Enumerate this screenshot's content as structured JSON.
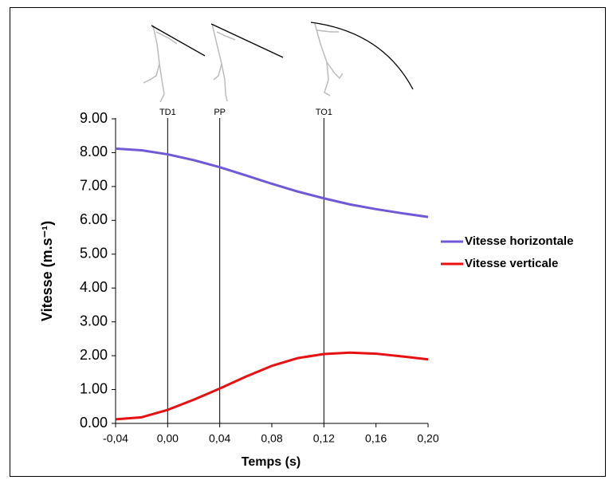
{
  "chart_data": {
    "type": "line",
    "x": [
      -0.04,
      -0.02,
      0.0,
      0.02,
      0.04,
      0.06,
      0.08,
      0.1,
      0.12,
      0.14,
      0.16,
      0.18,
      0.2
    ],
    "series": [
      {
        "name": "Vitesse horizontale",
        "color": "#7058d8",
        "values": [
          8.12,
          8.07,
          7.95,
          7.78,
          7.57,
          7.33,
          7.08,
          6.85,
          6.65,
          6.47,
          6.33,
          6.21,
          6.1
        ]
      },
      {
        "name": "Vitesse verticale",
        "color": "#e81010",
        "values": [
          0.12,
          0.18,
          0.4,
          0.7,
          1.03,
          1.38,
          1.7,
          1.93,
          2.05,
          2.09,
          2.06,
          1.98,
          1.89
        ]
      }
    ],
    "xlabel": "Temps (s)",
    "ylabel": "Vitesse (m.s⁻¹)",
    "xlim": [
      -0.04,
      0.2
    ],
    "xticks": [
      {
        "value": -0.04,
        "label": "-0,04"
      },
      {
        "value": 0,
        "label": "0,00"
      },
      {
        "value": 0.04,
        "label": "0,04"
      },
      {
        "value": 0.08,
        "label": "0,08"
      },
      {
        "value": 0.12,
        "label": "0,12"
      },
      {
        "value": 0.16,
        "label": "0,16"
      },
      {
        "value": 0.2,
        "label": "0,20"
      }
    ],
    "ylim": [
      0,
      9
    ],
    "yticks": [
      {
        "value": 0,
        "label": "0.00"
      },
      {
        "value": 1,
        "label": "1.00"
      },
      {
        "value": 2,
        "label": "2.00"
      },
      {
        "value": 3,
        "label": "3.00"
      },
      {
        "value": 4,
        "label": "4.00"
      },
      {
        "value": 5,
        "label": "5.00"
      },
      {
        "value": 6,
        "label": "6.00"
      },
      {
        "value": 7,
        "label": "7.00"
      },
      {
        "value": 8,
        "label": "8.00"
      },
      {
        "value": 9,
        "label": "9.00"
      }
    ],
    "markers": [
      {
        "label": "TD1",
        "x": 0
      },
      {
        "label": "PP",
        "x": 0.04
      },
      {
        "label": "TO1",
        "x": 0.12
      }
    ],
    "grid": false,
    "legend": "right"
  }
}
